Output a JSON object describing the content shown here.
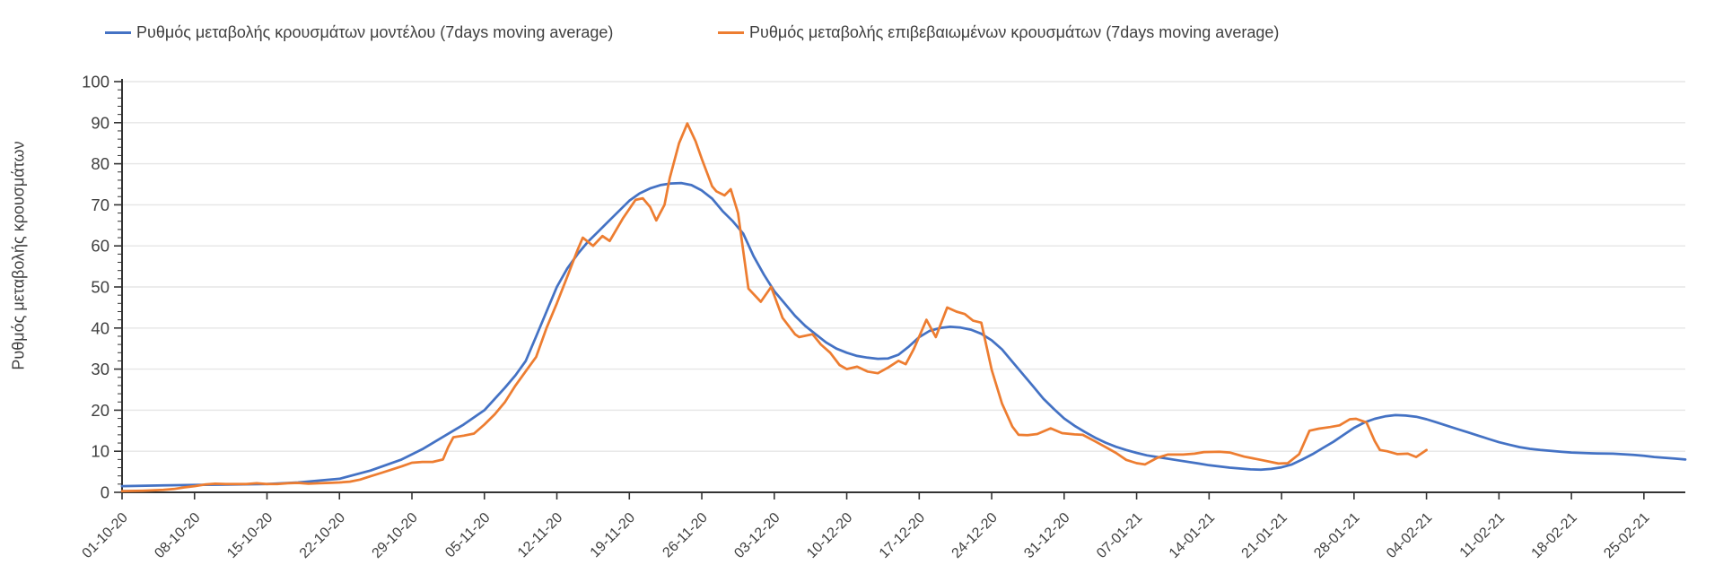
{
  "legend": [
    {
      "label": "Ρυθμός μεταβολής κρουσμάτων μοντέλου (7days moving average)",
      "color": "#4472C4"
    },
    {
      "label": "Ρυθμός μεταβολής επιβεβαιωμένων κρουσμάτων (7days moving average)",
      "color": "#ED7D31"
    }
  ],
  "colors": {
    "model_line": "#4472C4",
    "confirmed_line": "#ED7D31",
    "gridline": "#E6E6E6",
    "axis": "#333333",
    "label_text": "#404040",
    "background": "#FFFFFF"
  },
  "chart_data": {
    "type": "line",
    "title": "",
    "xlabel": "",
    "ylabel": "Ρυθμός μεταβολής κρουσμάτων",
    "ylim": [
      0,
      100
    ],
    "y_ticks": [
      0,
      10,
      20,
      30,
      40,
      50,
      60,
      70,
      80,
      90,
      100
    ],
    "y_minor_tick_step": 2,
    "grid": true,
    "legend_position": "top",
    "x_tick_labels": [
      "01-10-20",
      "08-10-20",
      "15-10-20",
      "22-10-20",
      "29-10-20",
      "05-11-20",
      "12-11-20",
      "19-11-20",
      "26-11-20",
      "03-12-20",
      "10-12-20",
      "17-12-20",
      "24-12-20",
      "31-12-20",
      "07-01-21",
      "14-01-21",
      "21-01-21",
      "28-01-21",
      "04-02-21",
      "11-02-21",
      "18-02-21",
      "25-02-21"
    ],
    "x_tick_days": [
      0,
      7,
      14,
      21,
      28,
      35,
      42,
      49,
      56,
      63,
      70,
      77,
      84,
      91,
      98,
      105,
      112,
      119,
      126,
      133,
      140,
      147
    ],
    "x_day_span": 151,
    "series": [
      {
        "name": "Ρυθμός μεταβολής κρουσμάτων μοντέλου (7days moving average)",
        "color": "#4472C4",
        "points": [
          [
            0,
            1.5
          ],
          [
            4,
            1.7
          ],
          [
            7,
            1.8
          ],
          [
            11,
            1.9
          ],
          [
            14,
            2
          ],
          [
            17,
            2.4
          ],
          [
            21,
            3.3
          ],
          [
            24,
            5.3
          ],
          [
            27,
            8
          ],
          [
            29,
            10.5
          ],
          [
            31,
            13.5
          ],
          [
            33,
            16.5
          ],
          [
            35,
            20
          ],
          [
            37,
            25.5
          ],
          [
            38,
            28.5
          ],
          [
            39,
            32
          ],
          [
            40,
            38
          ],
          [
            41,
            44
          ],
          [
            42,
            50
          ],
          [
            43,
            54.5
          ],
          [
            44,
            58
          ],
          [
            45,
            61
          ],
          [
            46,
            63.5
          ],
          [
            47,
            66
          ],
          [
            48,
            68.5
          ],
          [
            49,
            71
          ],
          [
            50,
            72.8
          ],
          [
            51,
            74
          ],
          [
            52,
            74.8
          ],
          [
            53,
            75.2
          ],
          [
            54,
            75.3
          ],
          [
            55,
            74.8
          ],
          [
            56,
            73.5
          ],
          [
            57,
            71.5
          ],
          [
            58,
            68.5
          ],
          [
            59,
            66
          ],
          [
            60,
            63
          ],
          [
            61,
            57.5
          ],
          [
            62,
            53
          ],
          [
            63,
            49
          ],
          [
            64,
            46
          ],
          [
            65,
            43
          ],
          [
            66,
            40.5
          ],
          [
            67,
            38.5
          ],
          [
            68,
            36.5
          ],
          [
            69,
            35
          ],
          [
            70,
            34
          ],
          [
            71,
            33.2
          ],
          [
            72,
            32.8
          ],
          [
            73,
            32.5
          ],
          [
            74,
            32.6
          ],
          [
            75,
            33.5
          ],
          [
            76,
            35.5
          ],
          [
            77,
            37.8
          ],
          [
            78,
            39.3
          ],
          [
            79,
            40
          ],
          [
            80,
            40.3
          ],
          [
            81,
            40.1
          ],
          [
            82,
            39.6
          ],
          [
            83,
            38.6
          ],
          [
            84,
            37
          ],
          [
            85,
            34.8
          ],
          [
            86,
            31.8
          ],
          [
            87,
            28.8
          ],
          [
            88,
            25.8
          ],
          [
            89,
            22.8
          ],
          [
            90,
            20.3
          ],
          [
            91,
            18
          ],
          [
            92,
            16.2
          ],
          [
            93,
            14.7
          ],
          [
            94,
            13.3
          ],
          [
            95,
            12.1
          ],
          [
            96,
            11.1
          ],
          [
            97,
            10.3
          ],
          [
            98,
            9.6
          ],
          [
            99,
            9
          ],
          [
            100,
            8.6
          ],
          [
            102,
            7.8
          ],
          [
            104,
            7
          ],
          [
            105,
            6.6
          ],
          [
            107,
            6
          ],
          [
            109,
            5.6
          ],
          [
            110,
            5.5
          ],
          [
            111,
            5.7
          ],
          [
            112,
            6.1
          ],
          [
            113,
            6.8
          ],
          [
            114,
            8
          ],
          [
            115,
            9.3
          ],
          [
            116,
            10.8
          ],
          [
            117,
            12.3
          ],
          [
            118,
            14
          ],
          [
            119,
            15.7
          ],
          [
            120,
            17
          ],
          [
            121,
            17.9
          ],
          [
            122,
            18.5
          ],
          [
            123,
            18.8
          ],
          [
            124,
            18.7
          ],
          [
            125,
            18.4
          ],
          [
            126,
            17.8
          ],
          [
            127,
            17
          ],
          [
            128,
            16.2
          ],
          [
            129,
            15.4
          ],
          [
            130,
            14.6
          ],
          [
            131,
            13.8
          ],
          [
            132,
            13
          ],
          [
            133,
            12.2
          ],
          [
            134,
            11.6
          ],
          [
            135,
            11
          ],
          [
            136,
            10.6
          ],
          [
            137,
            10.3
          ],
          [
            138,
            10.1
          ],
          [
            139,
            9.9
          ],
          [
            140,
            9.7
          ],
          [
            142,
            9.5
          ],
          [
            144,
            9.4
          ],
          [
            146,
            9.1
          ],
          [
            147,
            8.9
          ],
          [
            148,
            8.6
          ],
          [
            149,
            8.4
          ],
          [
            150,
            8.2
          ],
          [
            151,
            8
          ]
        ]
      },
      {
        "name": "Ρυθμός μεταβολής επιβεβαιωμένων κρουσμάτων (7days moving average)",
        "color": "#ED7D31",
        "points": [
          [
            0,
            0.3
          ],
          [
            2,
            0.4
          ],
          [
            4,
            0.6
          ],
          [
            5,
            0.8
          ],
          [
            6,
            1.2
          ],
          [
            7,
            1.5
          ],
          [
            8,
            1.9
          ],
          [
            9,
            2.1
          ],
          [
            10,
            2
          ],
          [
            12,
            2
          ],
          [
            13,
            2.2
          ],
          [
            14,
            2
          ],
          [
            15,
            2
          ],
          [
            16,
            2.2
          ],
          [
            17,
            2.3
          ],
          [
            18,
            2.1
          ],
          [
            19,
            2.2
          ],
          [
            20,
            2.3
          ],
          [
            21,
            2.4
          ],
          [
            22,
            2.6
          ],
          [
            23,
            3.1
          ],
          [
            24,
            3.9
          ],
          [
            25,
            4.7
          ],
          [
            26,
            5.5
          ],
          [
            27,
            6.3
          ],
          [
            28,
            7.2
          ],
          [
            29,
            7.4
          ],
          [
            30,
            7.4
          ],
          [
            31,
            8
          ],
          [
            31.5,
            11
          ],
          [
            32,
            13.4
          ],
          [
            33,
            13.8
          ],
          [
            34,
            14.3
          ],
          [
            35,
            16.5
          ],
          [
            36,
            19
          ],
          [
            37,
            22
          ],
          [
            38,
            26
          ],
          [
            39,
            29.5
          ],
          [
            40,
            33
          ],
          [
            41,
            40
          ],
          [
            42,
            46
          ],
          [
            43,
            52.5
          ],
          [
            44,
            59
          ],
          [
            44.5,
            62
          ],
          [
            45.5,
            60
          ],
          [
            46.4,
            62.4
          ],
          [
            47.1,
            61.2
          ],
          [
            48.4,
            66.8
          ],
          [
            49.6,
            71.2
          ],
          [
            50.3,
            71.6
          ],
          [
            51,
            69.5
          ],
          [
            51.6,
            66.2
          ],
          [
            52.4,
            70
          ],
          [
            52.9,
            76.5
          ],
          [
            53.8,
            85
          ],
          [
            54.6,
            89.8
          ],
          [
            55.4,
            85.5
          ],
          [
            56,
            81.2
          ],
          [
            57,
            74.5
          ],
          [
            57.4,
            73.3
          ],
          [
            58.2,
            72.3
          ],
          [
            58.8,
            73.8
          ],
          [
            59.5,
            68
          ],
          [
            60.5,
            49.6
          ],
          [
            61.7,
            46.4
          ],
          [
            62.7,
            50
          ],
          [
            63.8,
            42.5
          ],
          [
            65,
            38.5
          ],
          [
            65.4,
            37.8
          ],
          [
            66.7,
            38.5
          ],
          [
            67.5,
            36
          ],
          [
            68.4,
            34
          ],
          [
            69.3,
            31
          ],
          [
            70,
            30
          ],
          [
            71,
            30.6
          ],
          [
            72,
            29.4
          ],
          [
            73,
            29
          ],
          [
            74,
            30.4
          ],
          [
            75,
            32
          ],
          [
            75.7,
            31.2
          ],
          [
            76.5,
            35
          ],
          [
            77.7,
            42
          ],
          [
            78.6,
            37.8
          ],
          [
            79.7,
            45
          ],
          [
            80.6,
            44
          ],
          [
            81.4,
            43.4
          ],
          [
            82.2,
            41.8
          ],
          [
            83,
            41.3
          ],
          [
            84,
            29.8
          ],
          [
            85,
            21.6
          ],
          [
            86,
            16
          ],
          [
            86.6,
            14
          ],
          [
            87.5,
            13.9
          ],
          [
            88.4,
            14.2
          ],
          [
            89.7,
            15.6
          ],
          [
            90.8,
            14.4
          ],
          [
            92,
            14.1
          ],
          [
            92.8,
            14
          ],
          [
            94,
            12.4
          ],
          [
            95,
            11
          ],
          [
            96,
            9.6
          ],
          [
            97,
            7.9
          ],
          [
            98,
            7.1
          ],
          [
            98.8,
            6.8
          ],
          [
            100,
            8.4
          ],
          [
            101,
            9.2
          ],
          [
            102.5,
            9.2
          ],
          [
            103.6,
            9.4
          ],
          [
            104.5,
            9.8
          ],
          [
            106,
            9.9
          ],
          [
            107,
            9.7
          ],
          [
            108.4,
            8.7
          ],
          [
            110,
            7.9
          ],
          [
            111.7,
            7
          ],
          [
            112.6,
            7.1
          ],
          [
            113.7,
            9.3
          ],
          [
            114.7,
            15
          ],
          [
            115.6,
            15.5
          ],
          [
            116.7,
            15.9
          ],
          [
            117.6,
            16.3
          ],
          [
            118.6,
            17.8
          ],
          [
            119.2,
            17.9
          ],
          [
            120.2,
            17
          ],
          [
            121,
            12.5
          ],
          [
            121.5,
            10.3
          ],
          [
            122.2,
            10
          ],
          [
            123.2,
            9.3
          ],
          [
            124.2,
            9.4
          ],
          [
            125,
            8.6
          ],
          [
            126,
            10.3
          ]
        ]
      }
    ]
  }
}
